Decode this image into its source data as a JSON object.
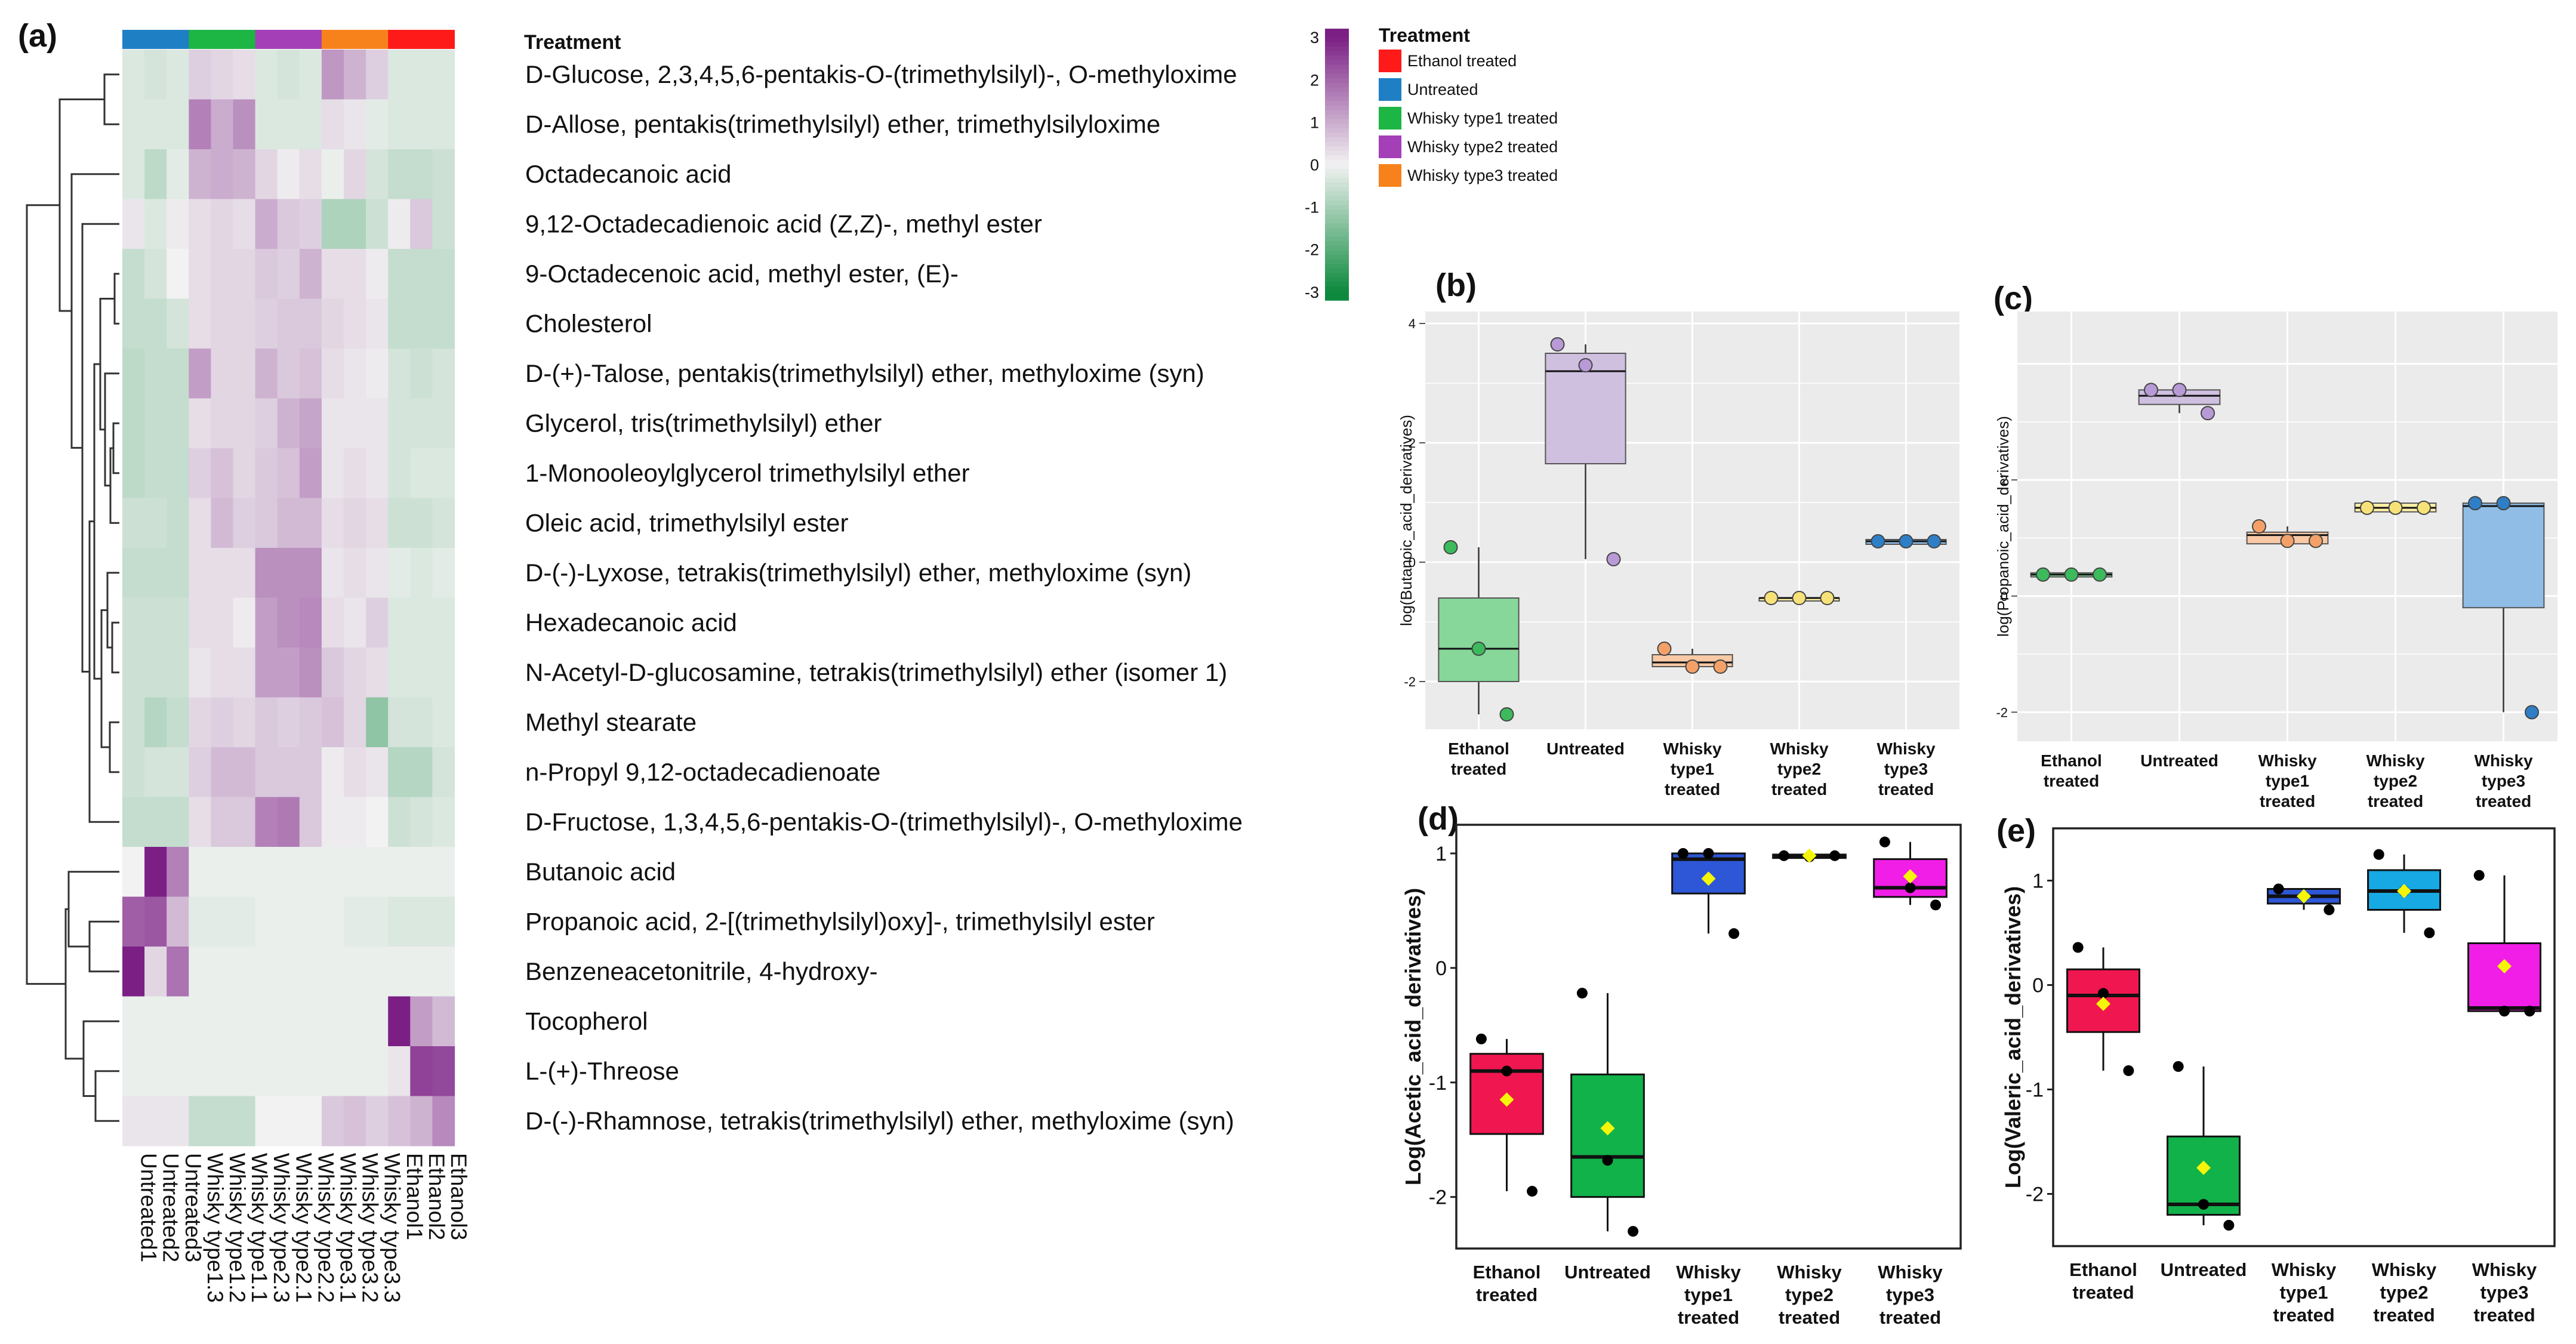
{
  "colors": {
    "ethanol": "#ff1a1a",
    "untreated": "#1f7fc4",
    "whisky1": "#1db544",
    "whisky2": "#a43fb8",
    "whisky3": "#f7821b",
    "low": "#0e8a3e",
    "mid": "#f2f2f2",
    "high": "#7b1f85"
  },
  "panel_a": {
    "letter": "(a)",
    "treatment_title": "Treatment",
    "scale_ticks": [
      "3",
      "2",
      "1",
      "0",
      "-1",
      "-2",
      "-3"
    ],
    "legend_title": "Treatment",
    "legend": [
      {
        "label": "Ethanol treated",
        "color": "#ff1a1a"
      },
      {
        "label": "Untreated",
        "color": "#1f7fc4"
      },
      {
        "label": "Whisky type1 treated",
        "color": "#1db544"
      },
      {
        "label": "Whisky type2 treated",
        "color": "#a43fb8"
      },
      {
        "label": "Whisky type3 treated",
        "color": "#f7821b"
      }
    ]
  },
  "chart_data": [
    {
      "type": "heatmap",
      "panel": "a",
      "columns": [
        "Untreated1",
        "Untreated2",
        "Untreated3",
        "Whisky type1.3",
        "Whisky type1.2",
        "Whisky type1.1",
        "Whisky type2.3",
        "Whisky type2.1",
        "Whisky type2.2",
        "Whisky type3.1",
        "Whisky type3.2",
        "Whisky type3.3",
        "Ethanol1",
        "Ethanol2",
        "Ethanol3"
      ],
      "column_groups": [
        "untreated",
        "untreated",
        "untreated",
        "whisky1",
        "whisky1",
        "whisky1",
        "whisky2",
        "whisky2",
        "whisky2",
        "whisky3",
        "whisky3",
        "whisky3",
        "ethanol",
        "ethanol",
        "ethanol"
      ],
      "rows": [
        "D-Glucose, 2,3,4,5,6-pentakis-O-(trimethylsilyl)-, O-methyloxime",
        "D-Allose, pentakis(trimethylsilyl) ether, trimethylsilyloxime",
        "Octadecanoic acid",
        "9,12-Octadecadienoic acid (Z,Z)-, methyl ester",
        "9-Octadecenoic acid, methyl ester, (E)-",
        "Cholesterol",
        "D-(+)-Talose, pentakis(trimethylsilyl) ether, methyloxime (syn)",
        "Glycerol, tris(trimethylsilyl) ether",
        "1-Monooleoylglycerol trimethylsilyl ether",
        "Oleic acid, trimethylsilyl ester",
        "D-(-)-Lyxose, tetrakis(trimethylsilyl) ether, methyloxime (syn)",
        "Hexadecanoic acid",
        "N-Acetyl-D-glucosamine, tetrakis(trimethylsilyl) ether (isomer 1)",
        "Methyl stearate",
        "n-Propyl 9,12-octadecadienoate",
        "D-Fructose, 1,3,4,5,6-pentakis-O-(trimethylsilyl)-, O-methyloxime",
        "Butanoic acid",
        "Propanoic acid, 2-[(trimethylsilyl)oxy]-, trimethylsilyl ester",
        "Benzeneacetonitrile, 4-hydroxy-",
        "Tocopherol",
        "L-(+)-Threose",
        "D-(-)-Rhamnose, tetrakis(trimethylsilyl) ether, methyloxime (syn)"
      ],
      "values": [
        [
          -0.3,
          -0.4,
          -0.3,
          0.5,
          0.4,
          0.3,
          -0.3,
          -0.4,
          -0.3,
          1.3,
          0.9,
          0.5,
          -0.3,
          -0.3,
          -0.3
        ],
        [
          -0.3,
          -0.3,
          -0.3,
          1.6,
          1.0,
          1.4,
          -0.3,
          -0.3,
          -0.3,
          0.3,
          0.2,
          -0.2,
          -0.3,
          -0.3,
          -0.3
        ],
        [
          -0.3,
          -0.7,
          -0.2,
          0.9,
          1.0,
          0.9,
          0.4,
          0.1,
          0.3,
          -0.1,
          0.4,
          -0.4,
          -0.6,
          -0.6,
          -0.5
        ],
        [
          0.2,
          -0.3,
          0.1,
          0.3,
          0.4,
          0.3,
          1.0,
          0.6,
          0.5,
          -0.9,
          -0.9,
          -0.5,
          0.1,
          0.6,
          -0.5
        ],
        [
          -0.6,
          -0.4,
          0.0,
          0.3,
          0.4,
          0.4,
          0.6,
          0.5,
          0.9,
          0.3,
          0.3,
          0.1,
          -0.6,
          -0.6,
          -0.6
        ],
        [
          -0.6,
          -0.6,
          -0.4,
          0.3,
          0.4,
          0.4,
          0.5,
          0.6,
          0.6,
          0.4,
          0.3,
          0.2,
          -0.6,
          -0.6,
          -0.6
        ],
        [
          -0.7,
          -0.6,
          -0.6,
          1.2,
          0.4,
          0.4,
          0.9,
          0.6,
          0.7,
          0.3,
          0.2,
          0.1,
          -0.4,
          -0.5,
          -0.4
        ],
        [
          -0.7,
          -0.6,
          -0.6,
          0.3,
          0.4,
          0.4,
          0.5,
          0.9,
          1.1,
          0.2,
          0.2,
          0.2,
          -0.4,
          -0.4,
          -0.4
        ],
        [
          -0.7,
          -0.6,
          -0.6,
          0.5,
          0.7,
          0.4,
          0.6,
          0.7,
          1.2,
          0.2,
          0.3,
          0.2,
          -0.4,
          -0.3,
          -0.3
        ],
        [
          -0.5,
          -0.5,
          -0.6,
          0.3,
          0.8,
          0.5,
          0.6,
          0.8,
          0.8,
          0.3,
          0.4,
          0.3,
          -0.5,
          -0.5,
          -0.4
        ],
        [
          -0.6,
          -0.6,
          -0.6,
          0.3,
          0.3,
          0.3,
          1.4,
          1.4,
          1.4,
          0.2,
          0.3,
          0.2,
          -0.2,
          -0.3,
          -0.2
        ],
        [
          -0.5,
          -0.5,
          -0.5,
          0.3,
          0.3,
          0.1,
          1.2,
          1.4,
          1.5,
          0.3,
          0.2,
          0.5,
          -0.3,
          -0.3,
          -0.3
        ],
        [
          -0.5,
          -0.5,
          -0.5,
          0.2,
          0.3,
          0.3,
          1.2,
          1.2,
          1.4,
          0.6,
          0.4,
          0.3,
          -0.3,
          -0.3,
          -0.3
        ],
        [
          -0.5,
          -0.8,
          -0.6,
          0.4,
          0.5,
          0.4,
          0.6,
          0.5,
          0.6,
          0.7,
          0.4,
          -1.3,
          -0.4,
          -0.4,
          -0.3
        ],
        [
          -0.5,
          -0.4,
          -0.4,
          0.5,
          0.8,
          0.8,
          0.6,
          0.6,
          0.6,
          0.1,
          0.3,
          0.2,
          -0.8,
          -0.8,
          -0.4
        ],
        [
          -0.6,
          -0.6,
          -0.6,
          0.3,
          0.6,
          0.6,
          1.6,
          1.7,
          0.6,
          0.1,
          0.1,
          0.0,
          -0.5,
          -0.4,
          -0.3
        ],
        [
          0.0,
          3.2,
          1.6,
          -0.1,
          -0.1,
          -0.1,
          -0.1,
          -0.1,
          -0.1,
          -0.1,
          -0.1,
          -0.1,
          -0.1,
          -0.1,
          -0.1
        ],
        [
          2.1,
          2.2,
          0.8,
          -0.2,
          -0.2,
          -0.2,
          -0.1,
          -0.1,
          -0.1,
          -0.1,
          -0.2,
          -0.2,
          -0.3,
          -0.3,
          -0.3
        ],
        [
          3.0,
          0.4,
          1.8,
          -0.1,
          -0.1,
          -0.1,
          -0.1,
          -0.1,
          -0.1,
          -0.1,
          -0.1,
          -0.1,
          -0.1,
          -0.1,
          -0.1
        ],
        [
          -0.1,
          -0.1,
          -0.1,
          -0.1,
          -0.1,
          -0.1,
          -0.1,
          -0.1,
          -0.1,
          -0.1,
          -0.1,
          -0.1,
          3.2,
          1.2,
          0.8
        ],
        [
          -0.1,
          -0.1,
          -0.1,
          -0.1,
          -0.1,
          -0.1,
          -0.1,
          -0.1,
          -0.1,
          -0.1,
          -0.1,
          -0.1,
          0.2,
          2.5,
          2.4
        ],
        [
          0.2,
          0.2,
          0.2,
          -0.6,
          -0.6,
          -0.6,
          0.0,
          0.0,
          0.0,
          0.6,
          0.7,
          0.5,
          0.7,
          0.9,
          1.5
        ]
      ],
      "scale": [
        -3,
        3
      ]
    },
    {
      "type": "box",
      "panel": "b",
      "letter": "(b)",
      "style": "light",
      "ylabel": "log(Butanoic_acid_derivatives)",
      "ylim": [
        -2.8,
        4.2
      ],
      "yticks": [
        -2,
        0,
        2,
        4
      ],
      "categories": [
        "Ethanol\ntreated",
        "Untreated",
        "Whisky\ntype1\ntreated",
        "Whisky\ntype2\ntreated",
        "Whisky\ntype3\ntreated"
      ],
      "groups": [
        {
          "q1": -2.0,
          "median": -1.45,
          "q3": -0.6,
          "lo": -2.55,
          "hi": 0.25,
          "points": [
            0.25,
            -1.45,
            -2.55
          ],
          "color": "#87d69a",
          "dot": "#3cba5c"
        },
        {
          "q1": 1.65,
          "median": 3.2,
          "q3": 3.5,
          "lo": 0.05,
          "hi": 3.65,
          "points": [
            3.65,
            3.3,
            0.05
          ],
          "color": "#cfc0e0",
          "dot": "#b89ad6"
        },
        {
          "q1": -1.75,
          "median": -1.68,
          "q3": -1.55,
          "lo": -1.75,
          "hi": -1.45,
          "points": [
            -1.45,
            -1.75,
            -1.75
          ],
          "color": "#f8c9a4",
          "dot": "#f3a169"
        },
        {
          "q1": -0.65,
          "median": -0.6,
          "q3": -0.6,
          "lo": -0.65,
          "hi": -0.58,
          "points": [
            -0.6,
            -0.6,
            -0.6
          ],
          "color": "#fff1a8",
          "dot": "#f7e27a"
        },
        {
          "q1": 0.3,
          "median": 0.35,
          "q3": 0.38,
          "lo": 0.3,
          "hi": 0.38,
          "points": [
            0.35,
            0.35,
            0.35
          ],
          "color": "#8fbde6",
          "dot": "#2f7fc7"
        }
      ]
    },
    {
      "type": "box",
      "panel": "c",
      "letter": "(c)",
      "style": "light",
      "ylabel": "log(Propanoic_acid_derivatives)",
      "ylim": [
        -2.5,
        4.9
      ],
      "yticks": [
        -2,
        0,
        2
      ],
      "categories": [
        "Ethanol\ntreated",
        "Untreated",
        "Whisky\ntype1\ntreated",
        "Whisky\ntype2\ntreated",
        "Whisky\ntype3\ntreated"
      ],
      "groups": [
        {
          "q1": 0.33,
          "median": 0.37,
          "q3": 0.4,
          "lo": 0.33,
          "hi": 0.4,
          "points": [
            0.37,
            0.37,
            0.37
          ],
          "color": "#87d69a",
          "dot": "#3cba5c"
        },
        {
          "q1": 3.3,
          "median": 3.45,
          "q3": 3.55,
          "lo": 3.15,
          "hi": 3.55,
          "points": [
            3.55,
            3.55,
            3.15
          ],
          "color": "#cfc0e0",
          "dot": "#b89ad6"
        },
        {
          "q1": 0.9,
          "median": 1.05,
          "q3": 1.1,
          "lo": 0.9,
          "hi": 1.2,
          "points": [
            1.2,
            0.95,
            0.95
          ],
          "color": "#f8c9a4",
          "dot": "#f3a169"
        },
        {
          "q1": 1.45,
          "median": 1.52,
          "q3": 1.6,
          "lo": 1.45,
          "hi": 1.6,
          "points": [
            1.52,
            1.52,
            1.52
          ],
          "color": "#fff1a8",
          "dot": "#f7e27a"
        },
        {
          "q1": -0.2,
          "median": 1.55,
          "q3": 1.6,
          "lo": -2.0,
          "hi": 1.6,
          "points": [
            1.6,
            1.6,
            -2.0
          ],
          "color": "#8fbde6",
          "dot": "#2f7fc7"
        }
      ]
    },
    {
      "type": "box",
      "panel": "d",
      "letter": "(d)",
      "style": "bold",
      "ylabel": "Log(Acetic_acid_derivatives)",
      "ylim": [
        -2.45,
        1.25
      ],
      "yticks": [
        -2,
        -1,
        0,
        1
      ],
      "categories": [
        "Ethanol\ntreated",
        "Untreated",
        "Whisky\ntype1\ntreated",
        "Whisky\ntype2\ntreated",
        "Whisky\ntype3\ntreated"
      ],
      "groups": [
        {
          "q1": -1.45,
          "median": -0.9,
          "q3": -0.75,
          "lo": -1.95,
          "hi": -0.62,
          "mean": -1.15,
          "points": [
            -0.62,
            -0.9,
            -1.95
          ],
          "color": "#f0164f"
        },
        {
          "q1": -2.0,
          "median": -1.65,
          "q3": -0.93,
          "lo": -2.3,
          "hi": -0.22,
          "mean": -1.4,
          "points": [
            -0.22,
            -1.68,
            -2.3
          ],
          "color": "#11b24a"
        },
        {
          "q1": 0.65,
          "median": 0.95,
          "q3": 1.0,
          "lo": 0.3,
          "hi": 1.0,
          "mean": 0.78,
          "points": [
            1.0,
            1.0,
            0.3
          ],
          "color": "#2d57d6"
        },
        {
          "q1": 0.96,
          "median": 0.98,
          "q3": 0.99,
          "lo": 0.96,
          "hi": 0.99,
          "mean": 0.98,
          "points": [
            0.98,
            0.97,
            0.98
          ],
          "color": "#16a9e3"
        },
        {
          "q1": 0.62,
          "median": 0.7,
          "q3": 0.95,
          "lo": 0.55,
          "hi": 1.1,
          "mean": 0.8,
          "points": [
            1.1,
            0.7,
            0.55
          ],
          "color": "#f01ee6"
        }
      ]
    },
    {
      "type": "box",
      "panel": "e",
      "letter": "(e)",
      "style": "bold",
      "ylabel": "Log(Valeric_acid_derivatives)",
      "ylim": [
        -2.5,
        1.5
      ],
      "yticks": [
        -2,
        -1,
        0,
        1
      ],
      "categories": [
        "Ethanol\ntreated",
        "Untreated",
        "Whisky\ntype1\ntreated",
        "Whisky\ntype2\ntreated",
        "Whisky\ntype3\ntreated"
      ],
      "groups": [
        {
          "q1": -0.45,
          "median": -0.1,
          "q3": 0.15,
          "lo": -0.82,
          "hi": 0.36,
          "mean": -0.18,
          "points": [
            0.36,
            -0.08,
            -0.82
          ],
          "color": "#f0164f"
        },
        {
          "q1": -2.2,
          "median": -2.1,
          "q3": -1.45,
          "lo": -2.3,
          "hi": -0.78,
          "mean": -1.75,
          "points": [
            -0.78,
            -2.1,
            -2.3
          ],
          "color": "#11b24a"
        },
        {
          "q1": 0.78,
          "median": 0.85,
          "q3": 0.92,
          "lo": 0.72,
          "hi": 0.92,
          "mean": 0.85,
          "points": [
            0.92,
            0.85,
            0.72
          ],
          "color": "#2d57d6"
        },
        {
          "q1": 0.72,
          "median": 0.9,
          "q3": 1.1,
          "lo": 0.5,
          "hi": 1.25,
          "mean": 0.9,
          "points": [
            1.25,
            0.9,
            0.5
          ],
          "color": "#16a9e3"
        },
        {
          "q1": -0.25,
          "median": -0.22,
          "q3": 0.4,
          "lo": -0.25,
          "hi": 1.05,
          "mean": 0.18,
          "points": [
            1.05,
            -0.25,
            -0.25
          ],
          "color": "#f01ee6"
        }
      ]
    }
  ]
}
